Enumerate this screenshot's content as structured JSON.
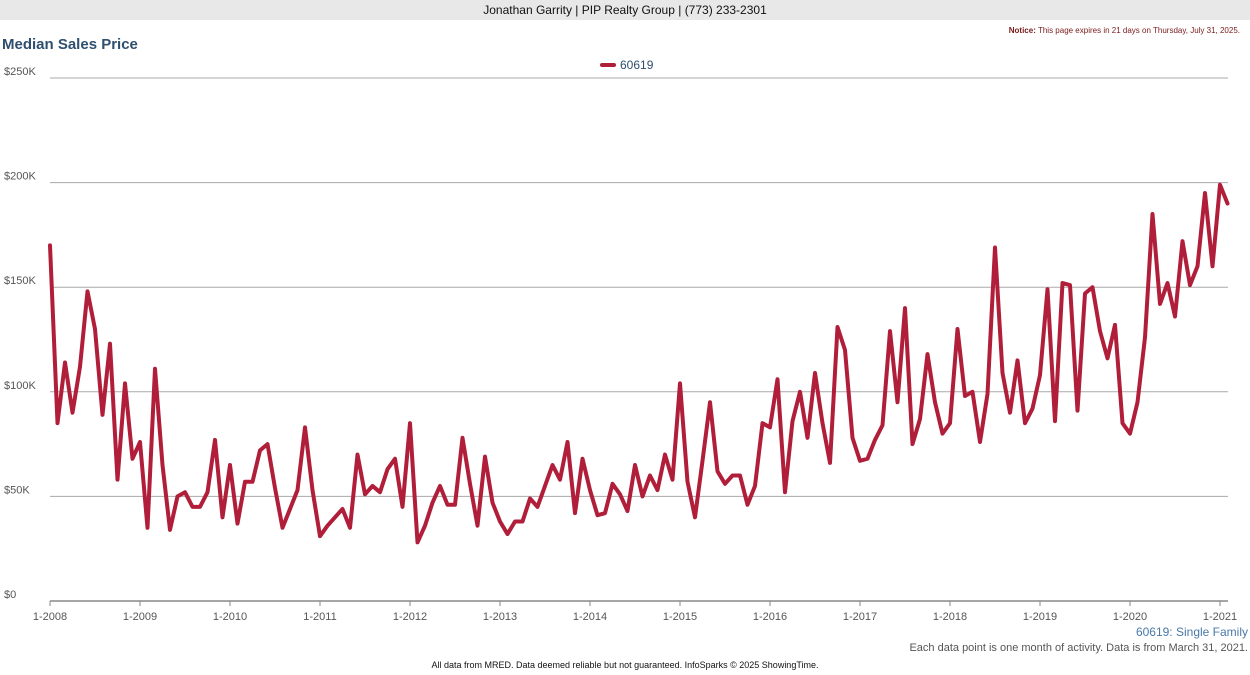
{
  "header": {
    "agent_line": "Jonathan Garrity | PIP Realty Group | (773) 233-2301",
    "notice_label": "Notice:",
    "notice_text": "This page expires in 21 days on Thursday, July 31, 2025."
  },
  "footer": {
    "series_description": "60619: Single Family",
    "data_note": "Each data point is one month of activity. Data is from March 31, 2021.",
    "disclaimer": "All data from MRED. Data deemed reliable but not guaranteed. InfoSparks © 2025 ShowingTime."
  },
  "colors": {
    "series": "#b01e3a",
    "title": "#2f4f6f",
    "grid": "#aaaaaa"
  },
  "chart_data": {
    "type": "line",
    "title": "Median Sales Price",
    "legend": "top-center",
    "grid": true,
    "ylim": [
      0,
      250000
    ],
    "y_ticks": [
      0,
      50000,
      100000,
      150000,
      200000,
      250000
    ],
    "y_tick_labels": [
      "$0",
      "$50K",
      "$100K",
      "$150K",
      "$200K",
      "$250K"
    ],
    "x_tick_labels": [
      "1-2008",
      "1-2009",
      "1-2010",
      "1-2011",
      "1-2012",
      "1-2013",
      "1-2014",
      "1-2015",
      "1-2016",
      "1-2017",
      "1-2018",
      "1-2019",
      "1-2020",
      "1-2021"
    ],
    "x_range": [
      "2008-01",
      "2021-03"
    ],
    "series": [
      {
        "name": "60619",
        "values": [
          170000,
          85000,
          114000,
          90000,
          112000,
          148000,
          130000,
          89000,
          123000,
          58000,
          104000,
          68000,
          76000,
          35000,
          111000,
          65000,
          34000,
          50000,
          52000,
          45000,
          45000,
          52000,
          77000,
          40000,
          65000,
          37000,
          57000,
          57000,
          72000,
          75000,
          54000,
          35000,
          44000,
          53000,
          83000,
          53000,
          31000,
          36000,
          40000,
          44000,
          35000,
          70000,
          51000,
          55000,
          52000,
          63000,
          68000,
          45000,
          85000,
          28000,
          36000,
          47000,
          55000,
          46000,
          46000,
          78000,
          56000,
          36000,
          69000,
          47000,
          38000,
          32000,
          38000,
          38000,
          49000,
          45000,
          55000,
          65000,
          58000,
          76000,
          42000,
          68000,
          53000,
          41000,
          42000,
          56000,
          51000,
          43000,
          65000,
          50000,
          60000,
          53000,
          70000,
          58000,
          104000,
          57000,
          40000,
          67000,
          95000,
          62000,
          56000,
          60000,
          60000,
          46000,
          55000,
          85000,
          83000,
          106000,
          52000,
          86000,
          100000,
          78000,
          109000,
          85000,
          66000,
          131000,
          120000,
          78000,
          67000,
          68000,
          77000,
          84000,
          129000,
          95000,
          140000,
          75000,
          87000,
          118000,
          95000,
          80000,
          85000,
          130000,
          98000,
          100000,
          76000,
          99000,
          169000,
          109000,
          90000,
          115000,
          85000,
          92000,
          108000,
          149000,
          86000,
          152000,
          151000,
          91000,
          147000,
          150000,
          129000,
          116000,
          132000,
          85000,
          80000,
          95000,
          126000,
          185000,
          142000,
          152000,
          136000,
          172000,
          151000,
          160000,
          195000,
          160000,
          199000,
          190000
        ]
      }
    ]
  }
}
